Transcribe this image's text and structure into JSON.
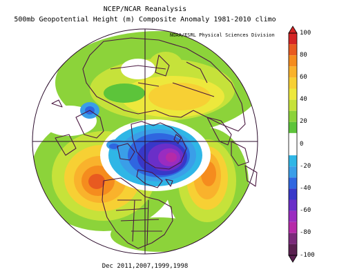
{
  "title_line1": "NCEP/NCAR Reanalysis",
  "title_line2": "500mb Geopotential Height (m) Composite Anomaly 1981-2010 climo",
  "credit": "NOAA/ESRL Physical Sciences Division",
  "footer": "Dec 2011,2007,1999,1998",
  "colorbar": {
    "ticks": [
      "100",
      "80",
      "60",
      "40",
      "20",
      "0",
      "-20",
      "-40",
      "-60",
      "-80",
      "-100"
    ],
    "bins": [
      {
        "from": 90,
        "to": 100,
        "color": "#d42424"
      },
      {
        "from": 80,
        "to": 90,
        "color": "#e85a20"
      },
      {
        "from": 70,
        "to": 80,
        "color": "#f58c1e"
      },
      {
        "from": 60,
        "to": 70,
        "color": "#f9b22c"
      },
      {
        "from": 50,
        "to": 60,
        "color": "#f7d034"
      },
      {
        "from": 40,
        "to": 50,
        "color": "#ede83c"
      },
      {
        "from": 30,
        "to": 40,
        "color": "#c6e23a"
      },
      {
        "from": 20,
        "to": 30,
        "color": "#8cd33a"
      },
      {
        "from": 10,
        "to": 20,
        "color": "#5cc43a"
      },
      {
        "from": -10,
        "to": 10,
        "color": "#ffffff"
      },
      {
        "from": -20,
        "to": -10,
        "color": "#2fb6e6"
      },
      {
        "from": -30,
        "to": -20,
        "color": "#3a9ee8"
      },
      {
        "from": -40,
        "to": -30,
        "color": "#2f66e0"
      },
      {
        "from": -50,
        "to": -40,
        "color": "#3838c8"
      },
      {
        "from": -60,
        "to": -50,
        "color": "#6a2fc8"
      },
      {
        "from": -70,
        "to": -60,
        "color": "#9a2cc0"
      },
      {
        "from": -80,
        "to": -70,
        "color": "#b62aa8"
      },
      {
        "from": -90,
        "to": -80,
        "color": "#7a2a7a"
      },
      {
        "from": -100,
        "to": -90,
        "color": "#5a2050"
      }
    ]
  },
  "colors": {
    "coastline": "#4a1840",
    "graticule": "#2a0a2a"
  }
}
